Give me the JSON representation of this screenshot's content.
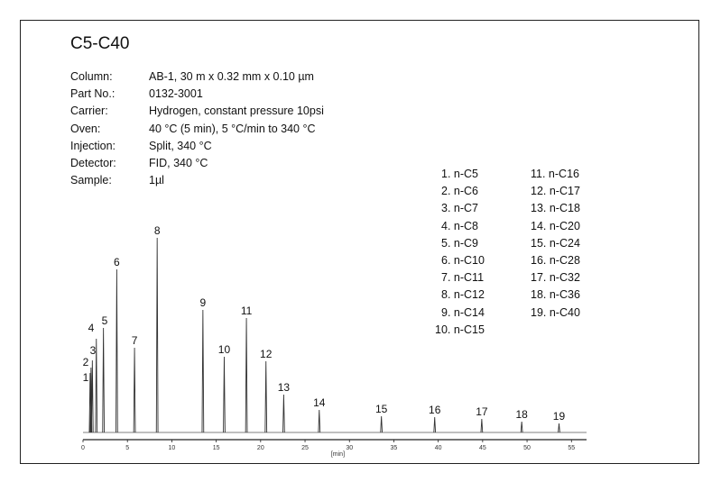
{
  "title": "C5-C40",
  "conditions": [
    {
      "label": "Column:",
      "value": "AB-1, 30 m x 0.32 mm x 0.10 µm"
    },
    {
      "label": "Part No.:",
      "value": "0132-3001"
    },
    {
      "label": "Carrier:",
      "value": "Hydrogen, constant pressure 10psi"
    },
    {
      "label": "Oven:",
      "value": "40 °C (5 min), 5 °C/min to 340 °C"
    },
    {
      "label": "Injection:",
      "value": "Split, 340 °C"
    },
    {
      "label": "Detector:",
      "value": "FID, 340 °C"
    },
    {
      "label": "Sample:",
      "value": "1µl"
    }
  ],
  "legend": [
    "1. n-C5",
    "2. n-C6",
    "3. n-C7",
    "4. n-C8",
    "5. n-C9",
    "6. n-C10",
    "7. n-C11",
    "8. n-C12",
    "9. n-C14",
    "10. n-C15",
    "11. n-C16",
    "12. n-C17",
    "13. n-C18",
    "14. n-C20",
    "15. n-C24",
    "16. n-C28",
    "17. n-C32",
    "18. n-C36",
    "19. n-C40"
  ],
  "chart_data": {
    "type": "line",
    "subtype": "chromatogram",
    "xlabel": "[min]",
    "xlim": [
      0,
      56.7
    ],
    "xticks": [
      0,
      5,
      10,
      15,
      20,
      25,
      30,
      35,
      40,
      45,
      50,
      55
    ],
    "y_axis_shown": false,
    "grid": false,
    "line_color": "#333333",
    "peaks": [
      {
        "label": "1",
        "rt": 0.8,
        "height": 66
      },
      {
        "label": "2",
        "rt": 0.9,
        "height": 72
      },
      {
        "label": "3",
        "rt": 1.05,
        "height": 80
      },
      {
        "label": "4",
        "rt": 1.5,
        "height": 104
      },
      {
        "label": "5",
        "rt": 2.3,
        "height": 116
      },
      {
        "label": "6",
        "rt": 3.8,
        "height": 181
      },
      {
        "label": "7",
        "rt": 5.8,
        "height": 94
      },
      {
        "label": "8",
        "rt": 8.35,
        "height": 216
      },
      {
        "label": "9",
        "rt": 13.5,
        "height": 136
      },
      {
        "label": "10",
        "rt": 15.9,
        "height": 84
      },
      {
        "label": "11",
        "rt": 18.4,
        "height": 127
      },
      {
        "label": "12",
        "rt": 20.6,
        "height": 79
      },
      {
        "label": "13",
        "rt": 22.6,
        "height": 42
      },
      {
        "label": "14",
        "rt": 26.6,
        "height": 25
      },
      {
        "label": "15",
        "rt": 33.6,
        "height": 18
      },
      {
        "label": "16",
        "rt": 39.6,
        "height": 17
      },
      {
        "label": "17",
        "rt": 44.9,
        "height": 15
      },
      {
        "label": "18",
        "rt": 49.4,
        "height": 12
      },
      {
        "label": "19",
        "rt": 53.6,
        "height": 10
      }
    ]
  }
}
